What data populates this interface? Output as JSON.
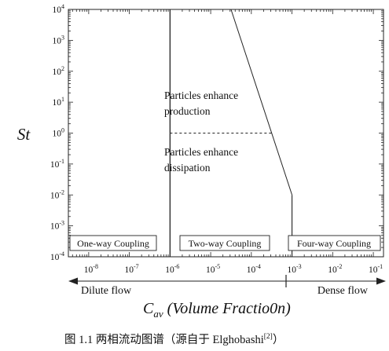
{
  "axes": {
    "y_label": "St",
    "x_label_main": "C",
    "x_label_sub": "av",
    "x_label_rest": " (Volume Fractio0n)",
    "y_ticks": [
      {
        "base": "10",
        "exp": "4",
        "log": 4
      },
      {
        "base": "10",
        "exp": "3",
        "log": 3
      },
      {
        "base": "10",
        "exp": "2",
        "log": 2
      },
      {
        "base": "10",
        "exp": "1",
        "log": 1
      },
      {
        "base": "10",
        "exp": "0",
        "log": 0
      },
      {
        "base": "10",
        "exp": "-1",
        "log": -1
      },
      {
        "base": "10",
        "exp": "-2",
        "log": -2
      },
      {
        "base": "10",
        "exp": "-3",
        "log": -3
      },
      {
        "base": "10",
        "exp": "-4",
        "log": -4
      }
    ],
    "x_ticks": [
      {
        "base": "10",
        "exp": "-8",
        "log": -8
      },
      {
        "base": "10",
        "exp": "-7",
        "log": -7
      },
      {
        "base": "10",
        "exp": "-6",
        "log": -6
      },
      {
        "base": "10",
        "exp": "-5",
        "log": -5
      },
      {
        "base": "10",
        "exp": "-4",
        "log": -4
      },
      {
        "base": "10",
        "exp": "-3",
        "log": -3
      },
      {
        "base": "10",
        "exp": "-2",
        "log": -2
      },
      {
        "base": "10",
        "exp": "-1",
        "log": -1
      }
    ],
    "x_range_log": [
      -8.5,
      -0.75
    ],
    "y_range_log": [
      -4,
      4
    ]
  },
  "regions": {
    "one_way": "One-way Coupling",
    "two_way": "Two-way Coupling",
    "four_way": "Four-way Coupling",
    "production_line1": "Particles enhance",
    "production_line2": "production",
    "dissipation_line1": "Particles enhance",
    "dissipation_line2": "dissipation"
  },
  "arrow_labels": {
    "dilute": "Dilute flow",
    "dense": "Dense flow"
  },
  "caption": {
    "text": "图 1.1  两相流动图谱（源自于 Elghobashi",
    "ref": "[2]",
    "close": "）"
  },
  "boundaries": {
    "one_two_way_x_log": -6,
    "two_four_way_x_log": -3,
    "diagonal_start": {
      "x_log": -4.5,
      "y_log": 4
    },
    "diagonal_end": {
      "x_log": -3,
      "y_log": -2
    },
    "dashed_st_log": 0
  }
}
